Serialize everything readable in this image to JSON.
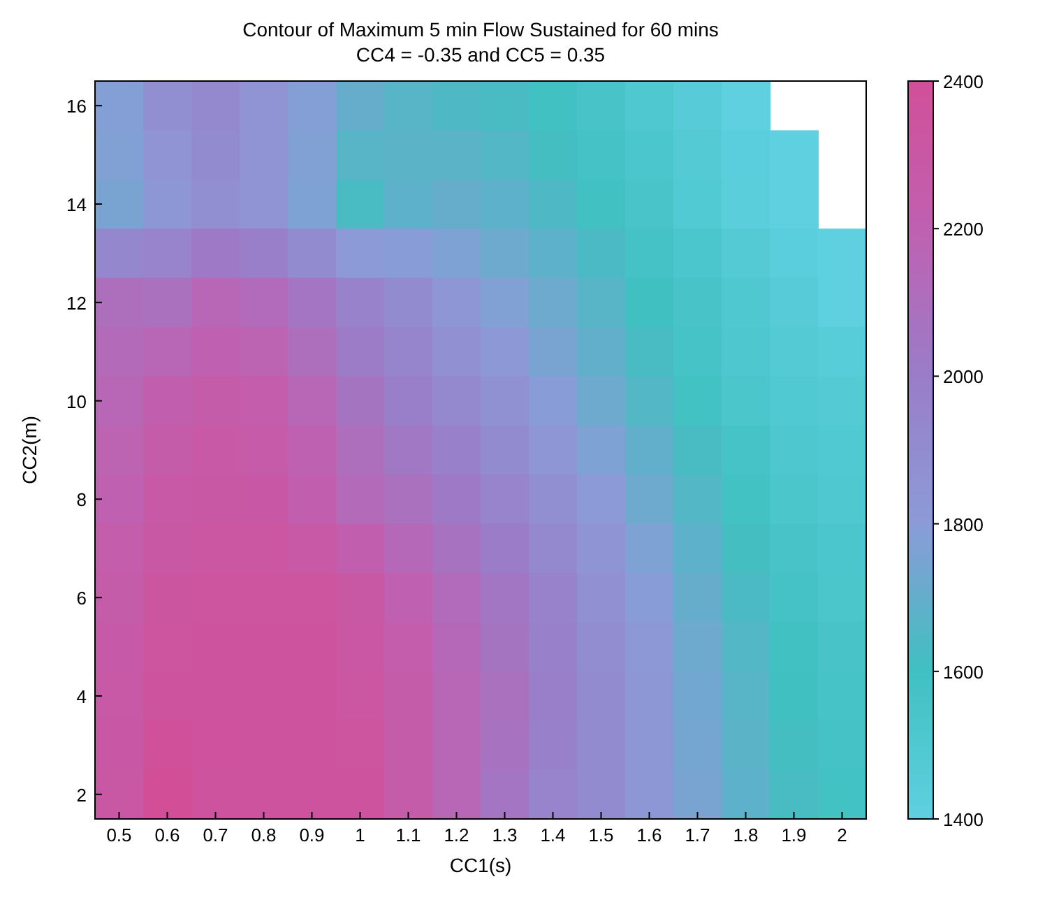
{
  "chart_data": {
    "type": "heatmap",
    "title": "Contour of Maximum 5 min Flow Sustained for 60 mins",
    "subtitle": "CC4 = -0.35 and CC5 = 0.35",
    "xlabel": "CC1(s)",
    "ylabel": "CC2(m)",
    "categories": [
      "0.5",
      "0.6",
      "0.7",
      "0.8",
      "0.9",
      "1",
      "1.1",
      "1.2",
      "1.3",
      "1.4",
      "1.5",
      "1.6",
      "1.7",
      "1.8",
      "1.9",
      "2"
    ],
    "y_categories": [
      "16",
      null,
      "14",
      null,
      "12",
      null,
      "10",
      null,
      "8",
      null,
      "6",
      null,
      "4",
      null,
      "2"
    ],
    "cells": [
      [
        1780,
        1880,
        1920,
        1850,
        1780,
        1700,
        1660,
        1640,
        1620,
        1590,
        1550,
        1500,
        1450,
        1400,
        null,
        null
      ],
      [
        1770,
        1850,
        1900,
        1850,
        1770,
        1660,
        1670,
        1670,
        1650,
        1610,
        1570,
        1520,
        1470,
        1420,
        1400,
        null
      ],
      [
        1750,
        1820,
        1880,
        1850,
        1760,
        1620,
        1680,
        1700,
        1680,
        1640,
        1590,
        1540,
        1480,
        1430,
        1400,
        null
      ],
      [
        1930,
        1950,
        2020,
        1990,
        1900,
        1800,
        1790,
        1760,
        1720,
        1680,
        1630,
        1570,
        1520,
        1470,
        1420,
        1400
      ],
      [
        2100,
        2080,
        2150,
        2120,
        2050,
        1960,
        1900,
        1830,
        1770,
        1720,
        1660,
        1600,
        1550,
        1500,
        1450,
        1400
      ],
      [
        2130,
        2150,
        2200,
        2180,
        2100,
        2010,
        1940,
        1870,
        1810,
        1750,
        1690,
        1620,
        1560,
        1510,
        1470,
        1440
      ],
      [
        2150,
        2220,
        2250,
        2230,
        2150,
        2060,
        1980,
        1920,
        1860,
        1790,
        1720,
        1650,
        1580,
        1530,
        1490,
        1470
      ],
      [
        2180,
        2250,
        2280,
        2260,
        2190,
        2100,
        2030,
        1970,
        1900,
        1830,
        1760,
        1690,
        1620,
        1560,
        1510,
        1490
      ],
      [
        2200,
        2280,
        2300,
        2290,
        2220,
        2130,
        2080,
        2020,
        1950,
        1880,
        1800,
        1720,
        1650,
        1580,
        1530,
        1500
      ],
      [
        2230,
        2300,
        2320,
        2320,
        2280,
        2220,
        2140,
        2070,
        2000,
        1920,
        1840,
        1760,
        1680,
        1610,
        1550,
        1520
      ],
      [
        2250,
        2330,
        2340,
        2340,
        2340,
        2300,
        2200,
        2120,
        2040,
        1960,
        1870,
        1790,
        1700,
        1630,
        1570,
        1530
      ],
      [
        2270,
        2340,
        2350,
        2350,
        2350,
        2310,
        2230,
        2140,
        2060,
        1970,
        1890,
        1810,
        1720,
        1650,
        1590,
        1550
      ],
      [
        2280,
        2350,
        2350,
        2350,
        2350,
        2320,
        2250,
        2150,
        2080,
        1980,
        1900,
        1820,
        1730,
        1660,
        1600,
        1560
      ],
      [
        2290,
        2380,
        2360,
        2350,
        2350,
        2340,
        2250,
        2150,
        2070,
        1970,
        1900,
        1820,
        1740,
        1670,
        1610,
        1570
      ],
      [
        2300,
        2400,
        2350,
        2350,
        2350,
        2350,
        2250,
        2150,
        2050,
        1950,
        1900,
        1820,
        1750,
        1680,
        1620,
        1580
      ]
    ],
    "clim": [
      1400,
      2400
    ],
    "cticks": [
      1400,
      1600,
      1800,
      2000,
      2200,
      2400
    ]
  }
}
